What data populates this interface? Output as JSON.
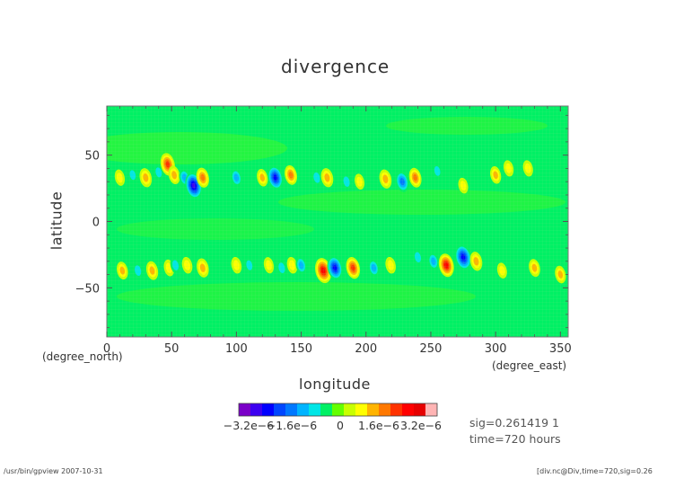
{
  "chart_data": {
    "type": "heatmap",
    "title": "divergence",
    "xlabel": "longitude",
    "ylabel": "latitude",
    "x_unit": "(degree_east)",
    "y_unit": "(degree_north)",
    "xlim": [
      0,
      356
    ],
    "ylim": [
      -87,
      87
    ],
    "x_ticks": [
      0,
      50,
      100,
      150,
      200,
      250,
      300,
      350
    ],
    "x_tick_labels": [
      "0",
      "50",
      "100",
      "150",
      "200",
      "250",
      "300",
      "350"
    ],
    "y_ticks": [
      -50,
      0,
      50
    ],
    "y_tick_labels": [
      "−50",
      "0",
      "50"
    ],
    "background_level": "0",
    "colorbar": {
      "colors": [
        "#7a00c8",
        "#3c00f0",
        "#0000ff",
        "#0046ff",
        "#0078ff",
        "#00b4ff",
        "#00e6e6",
        "#00f064",
        "#64ff00",
        "#c8ff00",
        "#ffff00",
        "#ffb400",
        "#ff7800",
        "#ff3200",
        "#ff0000",
        "#e60000",
        "#ffb4b4"
      ],
      "labels": [
        "−3.2e−6",
        "−1.6e−6",
        "0",
        "1.6e−6",
        "3.2e−6"
      ],
      "label_values": [
        -3.2e-06,
        -1.6e-06,
        0,
        1.6e-06,
        3.2e-06
      ]
    },
    "features": [
      {
        "lon": 10,
        "lat": 33,
        "value": 9e-07
      },
      {
        "lon": 20,
        "lat": 35,
        "value": -8e-07
      },
      {
        "lon": 30,
        "lat": 33,
        "value": 1.6e-06
      },
      {
        "lon": 40,
        "lat": 37,
        "value": -9e-07
      },
      {
        "lon": 47,
        "lat": 43,
        "value": 2.4e-06
      },
      {
        "lon": 52,
        "lat": 35,
        "value": 1.4e-06
      },
      {
        "lon": 60,
        "lat": 33,
        "value": -1.2e-06
      },
      {
        "lon": 67,
        "lat": 27,
        "value": -3.2e-06
      },
      {
        "lon": 74,
        "lat": 33,
        "value": 1.8e-06
      },
      {
        "lon": 100,
        "lat": 33,
        "value": -1.3e-06
      },
      {
        "lon": 120,
        "lat": 33,
        "value": 1.2e-06
      },
      {
        "lon": 130,
        "lat": 33,
        "value": -2.6e-06
      },
      {
        "lon": 142,
        "lat": 35,
        "value": 1.7e-06
      },
      {
        "lon": 162,
        "lat": 33,
        "value": -1.1e-06
      },
      {
        "lon": 170,
        "lat": 33,
        "value": 1.6e-06
      },
      {
        "lon": 185,
        "lat": 30,
        "value": -1e-06
      },
      {
        "lon": 195,
        "lat": 30,
        "value": 8e-07
      },
      {
        "lon": 215,
        "lat": 32,
        "value": 1.6e-06
      },
      {
        "lon": 228,
        "lat": 30,
        "value": -2e-06
      },
      {
        "lon": 238,
        "lat": 33,
        "value": 1.7e-06
      },
      {
        "lon": 255,
        "lat": 38,
        "value": -8e-07
      },
      {
        "lon": 275,
        "lat": 27,
        "value": 8e-07
      },
      {
        "lon": 300,
        "lat": 35,
        "value": 1.2e-06
      },
      {
        "lon": 310,
        "lat": 40,
        "value": 9e-07
      },
      {
        "lon": 325,
        "lat": 40,
        "value": 9e-07
      },
      {
        "lon": 12,
        "lat": -37,
        "value": 1.3e-06
      },
      {
        "lon": 24,
        "lat": -37,
        "value": -1.1e-06
      },
      {
        "lon": 35,
        "lat": -37,
        "value": 1.5e-06
      },
      {
        "lon": 48,
        "lat": -35,
        "value": 1e-06
      },
      {
        "lon": 53,
        "lat": -33,
        "value": -1e-06
      },
      {
        "lon": 62,
        "lat": -33,
        "value": 1e-06
      },
      {
        "lon": 74,
        "lat": -35,
        "value": 1.6e-06
      },
      {
        "lon": 100,
        "lat": -33,
        "value": 1e-06
      },
      {
        "lon": 110,
        "lat": -33,
        "value": -9e-07
      },
      {
        "lon": 125,
        "lat": -33,
        "value": 9e-07
      },
      {
        "lon": 135,
        "lat": -35,
        "value": -1.1e-06
      },
      {
        "lon": 143,
        "lat": -33,
        "value": 1e-06
      },
      {
        "lon": 150,
        "lat": -33,
        "value": -1.2e-06
      },
      {
        "lon": 167,
        "lat": -37,
        "value": 3e-06
      },
      {
        "lon": 176,
        "lat": -35,
        "value": -2.6e-06
      },
      {
        "lon": 190,
        "lat": -35,
        "value": 2.2e-06
      },
      {
        "lon": 206,
        "lat": -35,
        "value": -1.2e-06
      },
      {
        "lon": 219,
        "lat": -33,
        "value": 1e-06
      },
      {
        "lon": 240,
        "lat": -27,
        "value": -1e-06
      },
      {
        "lon": 252,
        "lat": -30,
        "value": -1.2e-06
      },
      {
        "lon": 262,
        "lat": -33,
        "value": 2.6e-06
      },
      {
        "lon": 275,
        "lat": -27,
        "value": -3e-06
      },
      {
        "lon": 285,
        "lat": -30,
        "value": 1.6e-06
      },
      {
        "lon": 305,
        "lat": -37,
        "value": 8e-07
      },
      {
        "lon": 330,
        "lat": -35,
        "value": 1.3e-06
      },
      {
        "lon": 350,
        "lat": -40,
        "value": 1.2e-06
      }
    ]
  },
  "info": {
    "sig": "sig=0.261419  1",
    "time": "time=720 hours"
  },
  "footer": {
    "left": "/usr/bin/gpview   2007-10-31",
    "right": "[div.nc@Div,time=720,sig=0.26"
  }
}
